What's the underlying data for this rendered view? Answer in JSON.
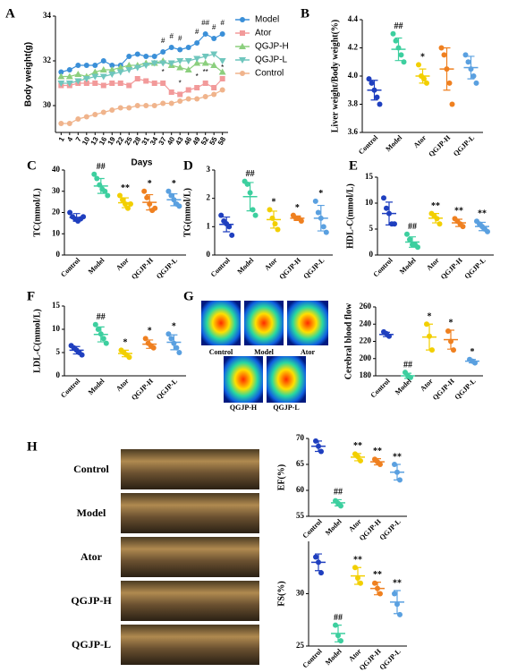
{
  "figure": {
    "panel_labels": [
      "A",
      "B",
      "C",
      "D",
      "E",
      "F",
      "G",
      "H"
    ],
    "g_image_labels": [
      "Control",
      "Model",
      "Ator",
      "QGJP-H",
      "QGJP-L"
    ],
    "h_image_labels": [
      "Control",
      "Model",
      "Ator",
      "QGJP-H",
      "QGJP-L"
    ]
  },
  "chart_data": [
    {
      "type": "line",
      "ylabel": "Body weight(g)",
      "xlabel": "Days",
      "x": [
        1,
        4,
        7,
        10,
        13,
        16,
        19,
        22,
        25,
        28,
        31,
        34,
        37,
        40,
        43,
        46,
        49,
        52,
        55,
        58
      ],
      "xlim": [
        -1,
        60
      ],
      "xticks": [
        1,
        4,
        7,
        10,
        13,
        16,
        19,
        22,
        25,
        28,
        31,
        34,
        37,
        40,
        43,
        46,
        49,
        52,
        55,
        58
      ],
      "ylim": [
        28.8,
        34
      ],
      "yticks": [
        30,
        32,
        34
      ],
      "legend": "upper right",
      "series": [
        {
          "name": "Model",
          "color": "#3a8fd8",
          "marker": "circle",
          "values": [
            31.5,
            31.6,
            31.8,
            31.8,
            31.8,
            32.0,
            31.8,
            31.8,
            32.2,
            32.3,
            32.2,
            32.2,
            32.4,
            32.6,
            32.5,
            32.6,
            32.8,
            33.2,
            33.0,
            33.2
          ]
        },
        {
          "name": "Ator",
          "color": "#f29a9a",
          "marker": "square",
          "values": [
            30.9,
            30.9,
            31.0,
            31.0,
            31.0,
            30.9,
            31.0,
            31.0,
            30.9,
            31.2,
            31.1,
            31.0,
            31.0,
            30.6,
            30.5,
            30.7,
            30.8,
            31.0,
            30.8,
            31.2
          ]
        },
        {
          "name": "QGJP-H",
          "color": "#8ccf7e",
          "marker": "triangle",
          "values": [
            31.3,
            31.3,
            31.4,
            31.3,
            31.5,
            31.6,
            31.6,
            31.7,
            31.8,
            31.8,
            31.9,
            31.9,
            32.0,
            31.8,
            31.7,
            31.6,
            31.9,
            31.9,
            31.8,
            31.5
          ]
        },
        {
          "name": "QGJP-L",
          "color": "#6fc6bd",
          "marker": "triangle-down",
          "values": [
            31.0,
            31.0,
            31.1,
            31.2,
            31.3,
            31.3,
            31.4,
            31.5,
            31.6,
            31.7,
            31.8,
            31.9,
            31.9,
            31.9,
            32.0,
            32.0,
            32.1,
            32.2,
            32.3,
            32.0
          ]
        },
        {
          "name": "Control",
          "color": "#f0b48c",
          "marker": "circle",
          "values": [
            29.2,
            29.2,
            29.4,
            29.5,
            29.6,
            29.7,
            29.8,
            29.9,
            29.9,
            30.0,
            30.0,
            30.0,
            30.1,
            30.1,
            30.2,
            30.3,
            30.3,
            30.4,
            30.5,
            30.7
          ]
        }
      ],
      "annotations": [
        {
          "series": 0,
          "x": 37,
          "label": "#"
        },
        {
          "series": 0,
          "x": 40,
          "label": "#"
        },
        {
          "series": 0,
          "x": 43,
          "label": "#"
        },
        {
          "series": 0,
          "x": 49,
          "label": "#"
        },
        {
          "series": 0,
          "x": 52,
          "label": "##"
        },
        {
          "series": 0,
          "x": 55,
          "label": "#"
        },
        {
          "series": 0,
          "x": 58,
          "label": "#"
        },
        {
          "series": 1,
          "x": 37,
          "label": "*"
        },
        {
          "series": 1,
          "x": 43,
          "label": "*"
        },
        {
          "series": 1,
          "x": 49,
          "label": "*"
        },
        {
          "series": 1,
          "x": 52,
          "label": "**"
        },
        {
          "series": 1,
          "x": 58,
          "label": "*"
        }
      ]
    },
    {
      "type": "dot",
      "ylabel": "Liver weight/Body weight(%)",
      "categories": [
        "Control",
        "Model",
        "Ator",
        "QGJP-H",
        "QGJP-L"
      ],
      "colors": [
        "#1f3fbf",
        "#3dcf9f",
        "#f2cf00",
        "#ef8020",
        "#5aa0e0"
      ],
      "ylim": [
        3.6,
        4.4
      ],
      "yticks": [
        {
          "value": 3.6,
          "label": "3.6"
        },
        {
          "value": 3.8,
          "label": "3.8"
        },
        {
          "value": 4.0,
          "label": "4.0"
        },
        {
          "value": 4.2,
          "label": "4.2"
        },
        {
          "value": 4.4,
          "label": "4.4"
        }
      ],
      "points": [
        [
          3.98,
          3.95,
          3.9,
          3.85,
          3.8
        ],
        [
          4.3,
          4.25,
          4.2,
          4.15,
          4.1
        ],
        [
          4.08,
          4.0,
          3.98,
          3.95
        ],
        [
          4.2,
          4.15,
          4.05,
          3.95,
          3.8
        ],
        [
          4.15,
          4.1,
          4.05,
          4.0,
          3.95
        ]
      ],
      "means": [
        3.9,
        4.19,
        4.0,
        4.05,
        4.06
      ],
      "sds": [
        0.07,
        0.08,
        0.05,
        0.15,
        0.08
      ],
      "significance": [
        null,
        "##",
        "*",
        null,
        null
      ]
    },
    {
      "type": "dot",
      "ylabel": "TC(mmol/L)",
      "categories": [
        "Control",
        "Model",
        "Ator",
        "QGJP-H",
        "QGJP-L"
      ],
      "colors": [
        "#1f3fbf",
        "#3dcf9f",
        "#f2cf00",
        "#ef8020",
        "#5aa0e0"
      ],
      "ylim": [
        0,
        40
      ],
      "yticks": [
        0,
        10,
        20,
        30,
        40
      ],
      "points": [
        [
          20,
          18,
          17,
          16,
          17,
          18
        ],
        [
          38,
          36,
          33,
          31,
          30,
          28
        ],
        [
          28,
          26,
          24,
          22,
          24
        ],
        [
          30,
          27,
          24,
          21,
          22
        ],
        [
          30,
          28,
          26,
          24,
          23
        ]
      ],
      "means": [
        17.7,
        32.5,
        24.6,
        24.8,
        26
      ],
      "sds": [
        1.8,
        3.5,
        2.3,
        3.6,
        2.8
      ],
      "significance": [
        null,
        "##",
        "**",
        "*",
        "*"
      ]
    },
    {
      "type": "dot",
      "ylabel": "TG(mmol/L)",
      "categories": [
        "Control",
        "Model",
        "Ator",
        "QGJP-H",
        "QGJP-L"
      ],
      "colors": [
        "#1f3fbf",
        "#3dcf9f",
        "#f2cf00",
        "#ef8020",
        "#5aa0e0"
      ],
      "ylim": [
        0,
        3
      ],
      "yticks": [
        0,
        1,
        2,
        3
      ],
      "points": [
        [
          1.4,
          1.2,
          1.1,
          1.0,
          0.7
        ],
        [
          2.6,
          2.5,
          2.2,
          1.6,
          1.4
        ],
        [
          1.6,
          1.3,
          1.1,
          0.9
        ],
        [
          1.4,
          1.3,
          1.3,
          1.2
        ],
        [
          1.9,
          1.5,
          1.3,
          1.0,
          0.8
        ]
      ],
      "means": [
        1.08,
        2.06,
        1.25,
        1.3,
        1.3
      ],
      "sds": [
        0.26,
        0.5,
        0.3,
        0.08,
        0.45
      ],
      "significance": [
        null,
        "##",
        "*",
        "*",
        "*"
      ]
    },
    {
      "type": "dot",
      "ylabel": "HDL-C(mmol/L)",
      "categories": [
        "Control",
        "Model",
        "Ator",
        "QGJP-H",
        "QGJP-L"
      ],
      "colors": [
        "#1f3fbf",
        "#3dcf9f",
        "#f2cf00",
        "#ef8020",
        "#5aa0e0"
      ],
      "ylim": [
        0,
        15
      ],
      "yticks": [
        0,
        5,
        10,
        15
      ],
      "points": [
        [
          11,
          9,
          8,
          6,
          6
        ],
        [
          4,
          3,
          2,
          2,
          1.5
        ],
        [
          8,
          7.5,
          7,
          6
        ],
        [
          7,
          6.5,
          6,
          5.5
        ],
        [
          6.5,
          6,
          5.5,
          5,
          4.5
        ]
      ],
      "means": [
        8,
        2.5,
        7.1,
        6.2,
        5.5
      ],
      "sds": [
        2.2,
        1,
        0.9,
        0.7,
        0.8
      ],
      "significance": [
        null,
        "##",
        "**",
        "**",
        "**"
      ]
    },
    {
      "type": "dot",
      "ylabel": "LDL-C(mmol/L)",
      "categories": [
        "Control",
        "Model",
        "Ator",
        "QGJP-H",
        "QGJP-L"
      ],
      "colors": [
        "#1f3fbf",
        "#3dcf9f",
        "#f2cf00",
        "#ef8020",
        "#5aa0e0"
      ],
      "ylim": [
        0,
        15
      ],
      "yticks": [
        0,
        5,
        10,
        15
      ],
      "points": [
        [
          6.5,
          6,
          5.5,
          5,
          4.5
        ],
        [
          11,
          10,
          9,
          8,
          7
        ],
        [
          5.5,
          5,
          4.5,
          4
        ],
        [
          8,
          7,
          6.5,
          6
        ],
        [
          9,
          8,
          7,
          6,
          5
        ]
      ],
      "means": [
        5.5,
        8.9,
        4.8,
        6.8,
        7.2
      ],
      "sds": [
        0.8,
        1.6,
        0.7,
        0.9,
        1.6
      ],
      "significance": [
        null,
        "##",
        "*",
        "*",
        "*"
      ]
    },
    {
      "type": "dot",
      "ylabel": "Cerebral blood flow",
      "categories": [
        "Control",
        "Model",
        "Ator",
        "QGJP-H",
        "QGJP-L"
      ],
      "colors": [
        "#1f3fbf",
        "#3dcf9f",
        "#f2cf00",
        "#ef8020",
        "#5aa0e0"
      ],
      "ylim": [
        180,
        260
      ],
      "yticks": [
        180,
        200,
        220,
        240,
        260
      ],
      "points": [
        [
          231,
          229,
          226
        ],
        [
          184,
          180,
          178
        ],
        [
          240,
          226,
          210
        ],
        [
          232,
          220,
          210
        ],
        [
          199,
          197,
          195
        ]
      ],
      "means": [
        228,
        180,
        225,
        222,
        197
      ],
      "sds": [
        2.5,
        3,
        15,
        11,
        2
      ],
      "significance": [
        null,
        "##",
        "*",
        "*",
        "*"
      ]
    },
    {
      "type": "dot",
      "ylabel": "EF(%)",
      "categories": [
        "Control",
        "Model",
        "Ator",
        "QGJP-H",
        "QGJP-L"
      ],
      "colors": [
        "#1f3fbf",
        "#3dcf9f",
        "#f2cf00",
        "#ef8020",
        "#5aa0e0"
      ],
      "ylim": [
        55,
        70
      ],
      "yticks": [
        55,
        60,
        65,
        70
      ],
      "show_categories": false,
      "points": [
        [
          69.5,
          68.5,
          67.5
        ],
        [
          58,
          57.5,
          57
        ],
        [
          67,
          66.5,
          65.7
        ],
        [
          66,
          65.5,
          65
        ],
        [
          65,
          63.5,
          62
        ]
      ],
      "means": [
        68.5,
        57.6,
        66.4,
        65.5,
        63.5
      ],
      "sds": [
        1,
        0.6,
        0.7,
        0.6,
        1.5
      ],
      "significance": [
        null,
        "##",
        "**",
        "**",
        "**"
      ]
    },
    {
      "type": "dot",
      "ylabel": "FS(%)",
      "categories": [
        "Control",
        "Model",
        "Ator",
        "QGJP-H",
        "QGJP-L"
      ],
      "colors": [
        "#1f3fbf",
        "#3dcf9f",
        "#f2cf00",
        "#ef8020",
        "#5aa0e0"
      ],
      "ylim": [
        25,
        35
      ],
      "yticks": [
        25,
        30
      ],
      "points": [
        [
          33.5,
          33,
          32
        ],
        [
          27,
          26,
          25.5
        ],
        [
          32.5,
          31.5,
          31
        ],
        [
          31,
          30.5,
          30
        ],
        [
          30,
          29,
          28
        ]
      ],
      "means": [
        33,
        26.2,
        31.7,
        30.5,
        29.2
      ],
      "sds": [
        0.8,
        0.8,
        0.8,
        0.6,
        1.1
      ],
      "significance": [
        null,
        "##",
        "**",
        "**",
        "**"
      ]
    }
  ]
}
